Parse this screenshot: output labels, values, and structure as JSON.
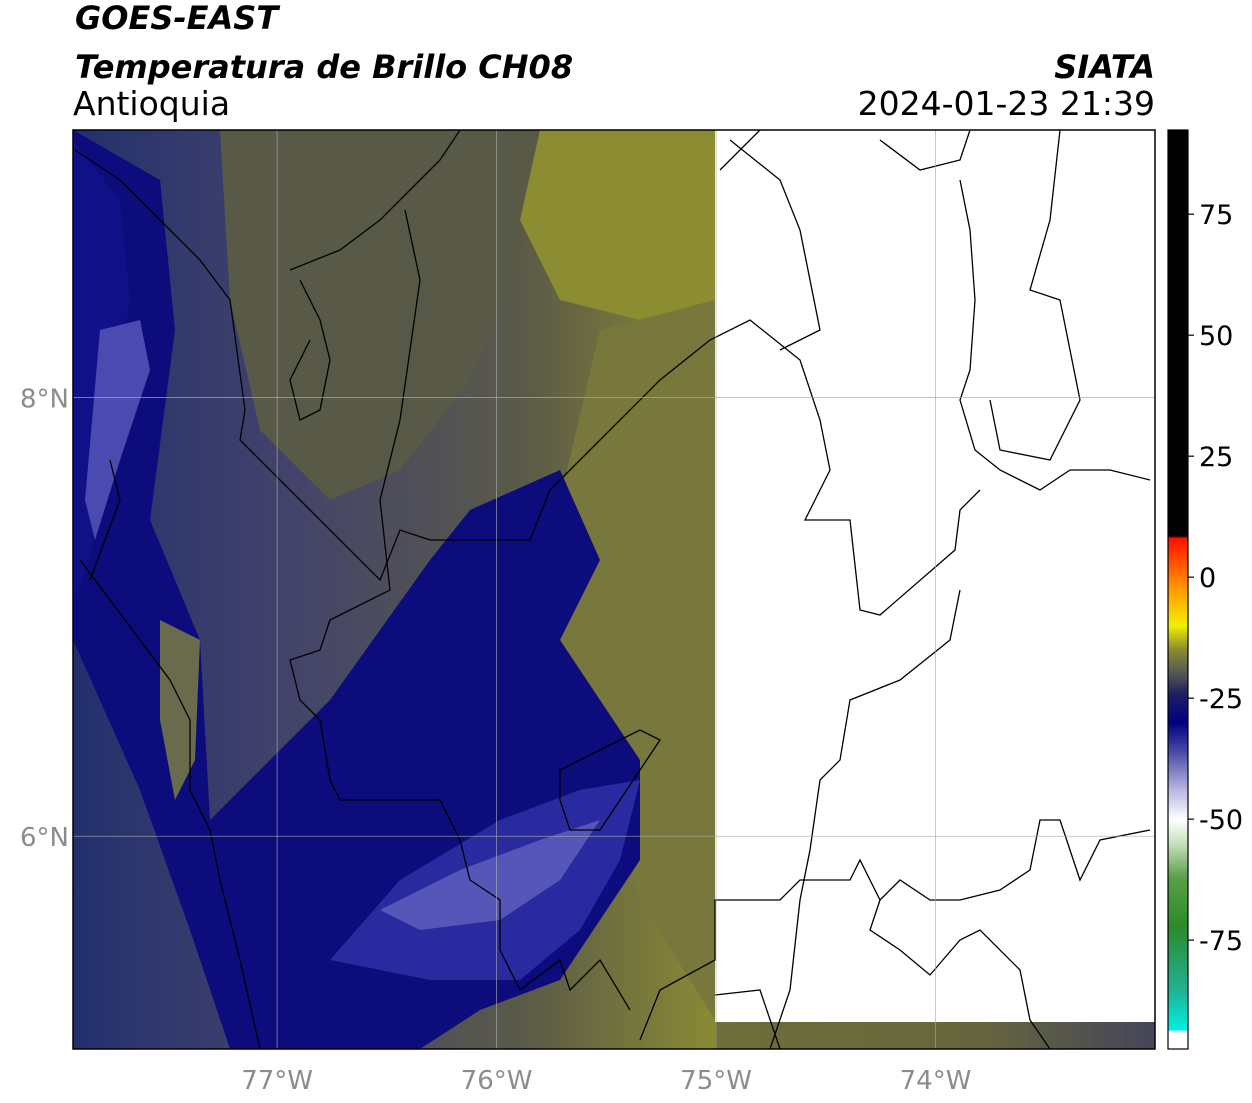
{
  "header": {
    "title": "GOES-EAST",
    "subtitle": "Temperatura de Brillo CH08",
    "region": "Antioquia",
    "source": "SIATA",
    "timestamp": "2024-01-23 21:39"
  },
  "map": {
    "xlim": [
      -77.93,
      -73.0
    ],
    "ylim": [
      5.03,
      9.22
    ],
    "xticks": [
      {
        "value": -77,
        "label": "77°W"
      },
      {
        "value": -76,
        "label": "76°W"
      },
      {
        "value": -75,
        "label": "75°W"
      },
      {
        "value": -74,
        "label": "74°W"
      }
    ],
    "yticks": [
      {
        "value": 8,
        "label": "8°N"
      },
      {
        "value": 6,
        "label": "6°N"
      }
    ],
    "grid": true
  },
  "colorbar": {
    "lim": [
      -97.5,
      92.4
    ],
    "ticks": [
      75,
      50,
      25,
      0,
      -25,
      -50,
      -75
    ],
    "stops": [
      {
        "value": -97.5,
        "color": "#ffffff"
      },
      {
        "value": -94,
        "color": "#ffffff"
      },
      {
        "value": -93.5,
        "color": "#00f0e0"
      },
      {
        "value": -85,
        "color": "#20b090"
      },
      {
        "value": -72,
        "color": "#2e8a2a"
      },
      {
        "value": -62,
        "color": "#5aa04a"
      },
      {
        "value": -55,
        "color": "#c8e0c0"
      },
      {
        "value": -50,
        "color": "#ffffff"
      },
      {
        "value": -44,
        "color": "#b8b8e0"
      },
      {
        "value": -36,
        "color": "#4848a8"
      },
      {
        "value": -30,
        "color": "#000080"
      },
      {
        "value": -24,
        "color": "#202060"
      },
      {
        "value": -20,
        "color": "#555555"
      },
      {
        "value": -15,
        "color": "#8a8a30"
      },
      {
        "value": -10,
        "color": "#f0f000"
      },
      {
        "value": -3,
        "color": "#ffa000"
      },
      {
        "value": 8,
        "color": "#ff1000"
      },
      {
        "value": 8.5,
        "color": "#000000"
      },
      {
        "value": 92.4,
        "color": "#000000"
      }
    ]
  }
}
